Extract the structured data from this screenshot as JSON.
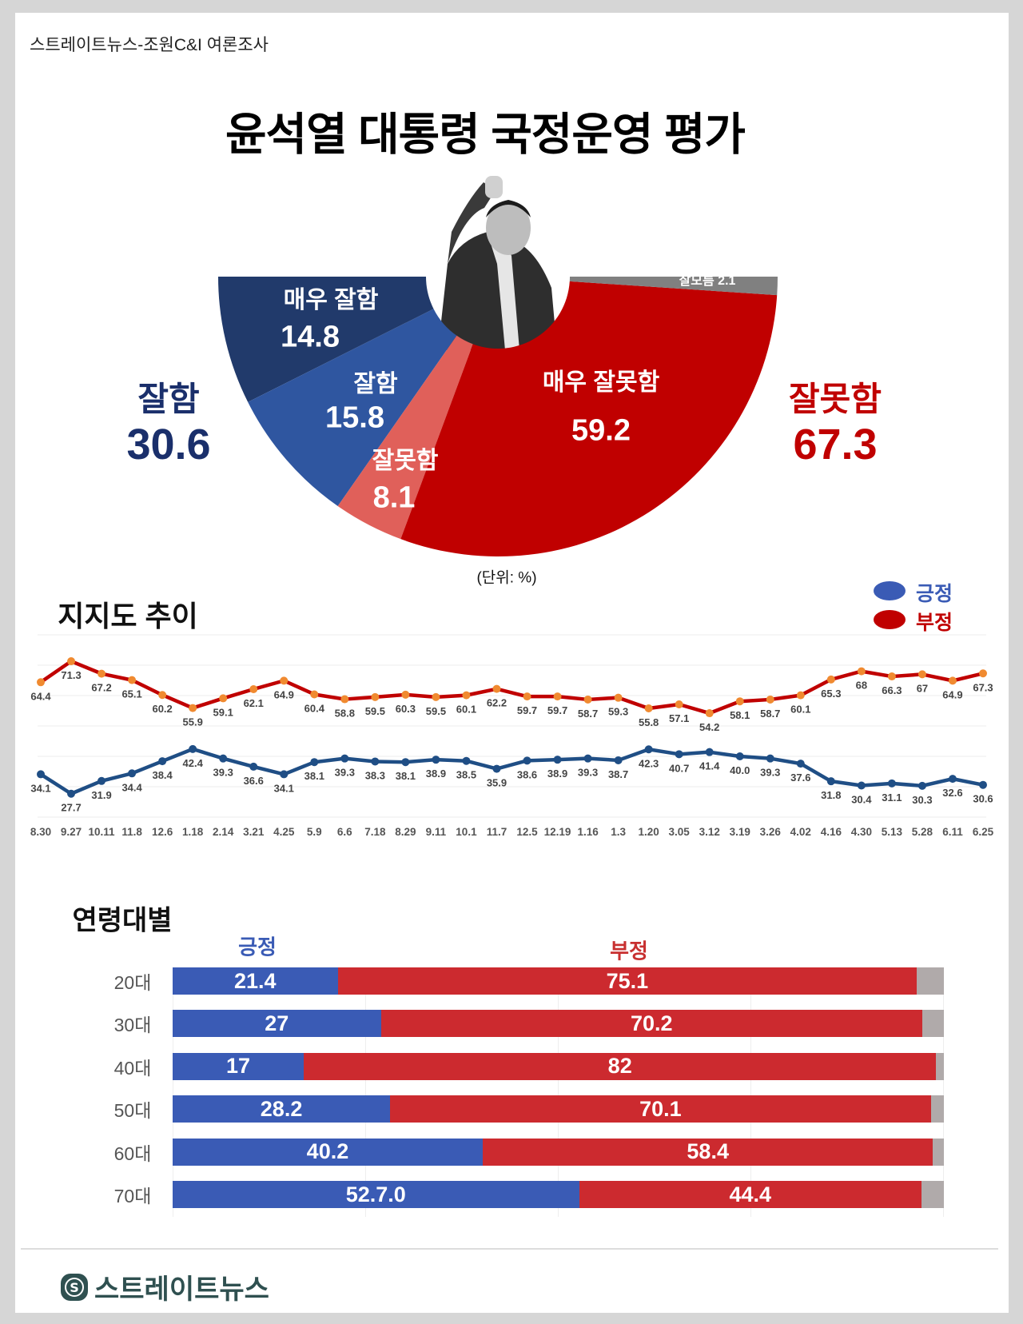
{
  "header": {
    "source": "스트레이트뉴스-조원C&I 여론조사",
    "title": "윤석열 대통령 국정운영 평가"
  },
  "colors": {
    "very_good": "#213a6b",
    "good": "#2f56a0",
    "bad": "#e0605a",
    "very_bad": "#c00000",
    "unknown": "#808080",
    "positive": "#3a5bb5",
    "negative": "#c00000",
    "positive_line": "#1f4e85",
    "negative_marker": "#f08a30",
    "bar_positive": "#3a5bb5",
    "bar_negative": "#cc2a2f",
    "bar_rest": "#b0aaaa"
  },
  "chart_data": [
    {
      "type": "pie",
      "variant": "semi-donut",
      "title": "윤석열 대통령 국정운영 평가",
      "unit_note": "(단위: %)",
      "slices": [
        {
          "label": "매우 잘함",
          "value": 14.8,
          "display": "14.8"
        },
        {
          "label": "잘함",
          "value": 15.8,
          "display": "15.8"
        },
        {
          "label": "잘못함",
          "value": 8.1,
          "display": "8.1"
        },
        {
          "label": "매우 잘못함",
          "value": 59.2,
          "display": "59.2"
        },
        {
          "label": "잘모름",
          "value": 2.1,
          "display": "잘모름 2.1"
        }
      ],
      "totals": {
        "positive": {
          "label": "잘함",
          "value": "30.6"
        },
        "negative": {
          "label": "잘못함",
          "value": "67.3"
        }
      }
    },
    {
      "type": "line",
      "title": "지지도 추이",
      "legend": [
        "긍정",
        "부정"
      ],
      "legend_position": "top-right",
      "grid": true,
      "ylim": [
        20,
        80
      ],
      "x": [
        "8.30",
        "9.27",
        "10.11",
        "11.8",
        "12.6",
        "1.18",
        "2.14",
        "3.21",
        "4.25",
        "5.9",
        "6.6",
        "7.18",
        "8.29",
        "9.11",
        "10.1",
        "11.7",
        "12.5",
        "12.19",
        "1.16",
        "1.3",
        "1.20",
        "3.05",
        "3.12",
        "3.19",
        "3.26",
        "4.02",
        "4.16",
        "4.30",
        "5.13",
        "5.28",
        "6.11",
        "6.25"
      ],
      "series": [
        {
          "name": "부정",
          "values": [
            64.4,
            71.3,
            67.2,
            65.1,
            60.2,
            55.9,
            59.1,
            62.1,
            64.9,
            60.4,
            58.8,
            59.5,
            60.3,
            59.5,
            60.1,
            62.2,
            59.7,
            59.7,
            58.7,
            59.3,
            55.8,
            57.1,
            54.2,
            58.1,
            58.7,
            60.1,
            65.3,
            68,
            66.3,
            67,
            64.9,
            67.3
          ],
          "labels": [
            "64.4",
            "71.3",
            "67.2",
            "65.1",
            "60.2",
            "55.9",
            "59.1",
            "62.1",
            "64.9",
            "60.4",
            "58.8",
            "59.5",
            "60.3",
            "59.5",
            "60.1",
            "62.2",
            "59.7",
            "59.7",
            "58.7",
            "59.3",
            "55.8",
            "57.1",
            "54.2",
            "58.1",
            "58.7",
            "60.1",
            "65.3",
            "68",
            "66.3",
            "67",
            "64.9",
            "67.3"
          ]
        },
        {
          "name": "긍정",
          "values": [
            34.1,
            27.7,
            31.9,
            34.4,
            38.4,
            42.4,
            39.3,
            36.6,
            34.1,
            38.1,
            39.3,
            38.3,
            38.1,
            38.9,
            38.5,
            35.9,
            38.6,
            38.9,
            39.3,
            38.7,
            42.3,
            40.7,
            41.4,
            40.0,
            39.3,
            37.6,
            31.8,
            30.4,
            31.1,
            30.3,
            32.6,
            30.6
          ],
          "labels": [
            "34.1",
            "27.7",
            "31.9",
            "34.4",
            "38.4",
            "42.4",
            "39.3",
            "36.6",
            "34.1",
            "38.1",
            "39.3",
            "38.3",
            "38.1",
            "38.9",
            "38.5",
            "35.9",
            "38.6",
            "38.9",
            "39.3",
            "38.7",
            "42.3",
            "40.7",
            "41.4",
            "40.0",
            "39.3",
            "37.6",
            "31.8",
            "30.4",
            "31.1",
            "30.3",
            "32.6",
            "30.6"
          ]
        }
      ]
    },
    {
      "type": "bar",
      "orientation": "horizontal-stacked",
      "title": "연령대별",
      "series_headers": [
        "긍정",
        "부정"
      ],
      "categories": [
        "20대",
        "30대",
        "40대",
        "50대",
        "60대",
        "70대"
      ],
      "series": [
        {
          "name": "긍정",
          "values": [
            21.4,
            27,
            17,
            28.2,
            40.2,
            52.7
          ],
          "labels": [
            "21.4",
            "27",
            "17",
            "28.2",
            "40.2",
            "52.7.0"
          ]
        },
        {
          "name": "부정",
          "values": [
            75.1,
            70.2,
            82,
            70.1,
            58.4,
            44.4
          ],
          "labels": [
            "75.1",
            "70.2",
            "82",
            "70.1",
            "58.4",
            "44.4"
          ]
        }
      ],
      "xlim": [
        0,
        100
      ]
    }
  ],
  "footer": {
    "logo_text": "스트레이트뉴스"
  }
}
